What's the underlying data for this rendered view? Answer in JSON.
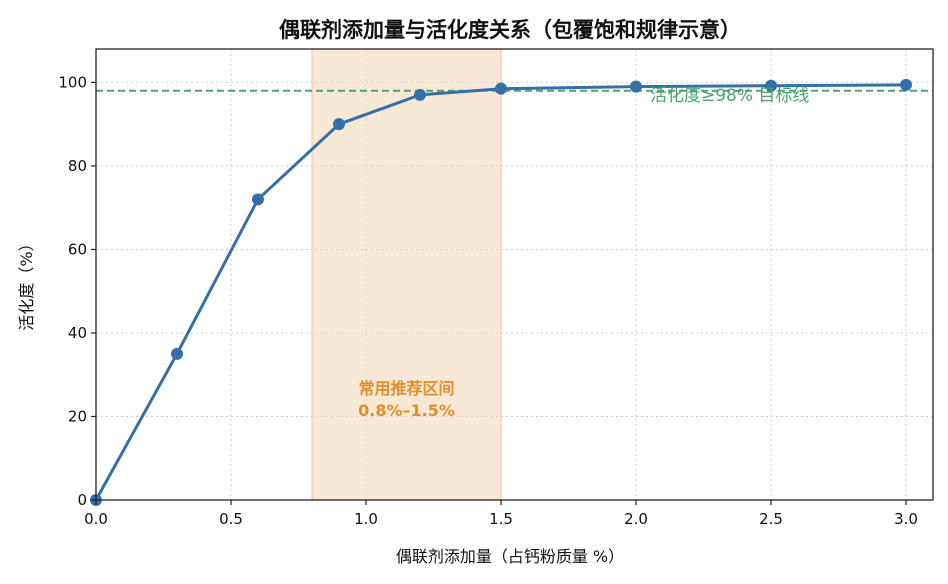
{
  "chart_data": {
    "type": "line",
    "title": "偶联剂添加量与活化度关系（包覆饱和规律示意）",
    "xlabel": "偶联剂添加量（占钙粉质量 %）",
    "ylabel": "活化度（%）",
    "xlim": [
      0,
      3.1
    ],
    "ylim": [
      0,
      108
    ],
    "x_ticks": [
      0.0,
      0.5,
      1.0,
      1.5,
      2.0,
      2.5,
      3.0
    ],
    "x_tick_labels": [
      "0.0",
      "0.5",
      "1.0",
      "1.5",
      "2.0",
      "2.5",
      "3.0"
    ],
    "y_ticks": [
      0,
      20,
      40,
      60,
      80,
      100
    ],
    "y_tick_labels": [
      "0",
      "20",
      "40",
      "60",
      "80",
      "100"
    ],
    "grid": true,
    "series": [
      {
        "x": [
          0.0,
          0.3,
          0.6,
          0.9,
          1.2,
          1.5,
          2.0,
          2.5,
          3.0
        ],
        "y": [
          0,
          35,
          72,
          90,
          97,
          98.5,
          99,
          99.2,
          99.4
        ],
        "color": "#3470a8"
      }
    ],
    "band": {
      "x": [
        0.8,
        1.5
      ],
      "label_line1": "常用推荐区间",
      "label_line2": "0.8%–1.5%",
      "color": "#f7e5d0",
      "label_color": "#e08e2b"
    },
    "target_line": {
      "y": 98,
      "label": "活化度≥98% 目标线",
      "color": "#4ca36e"
    }
  }
}
